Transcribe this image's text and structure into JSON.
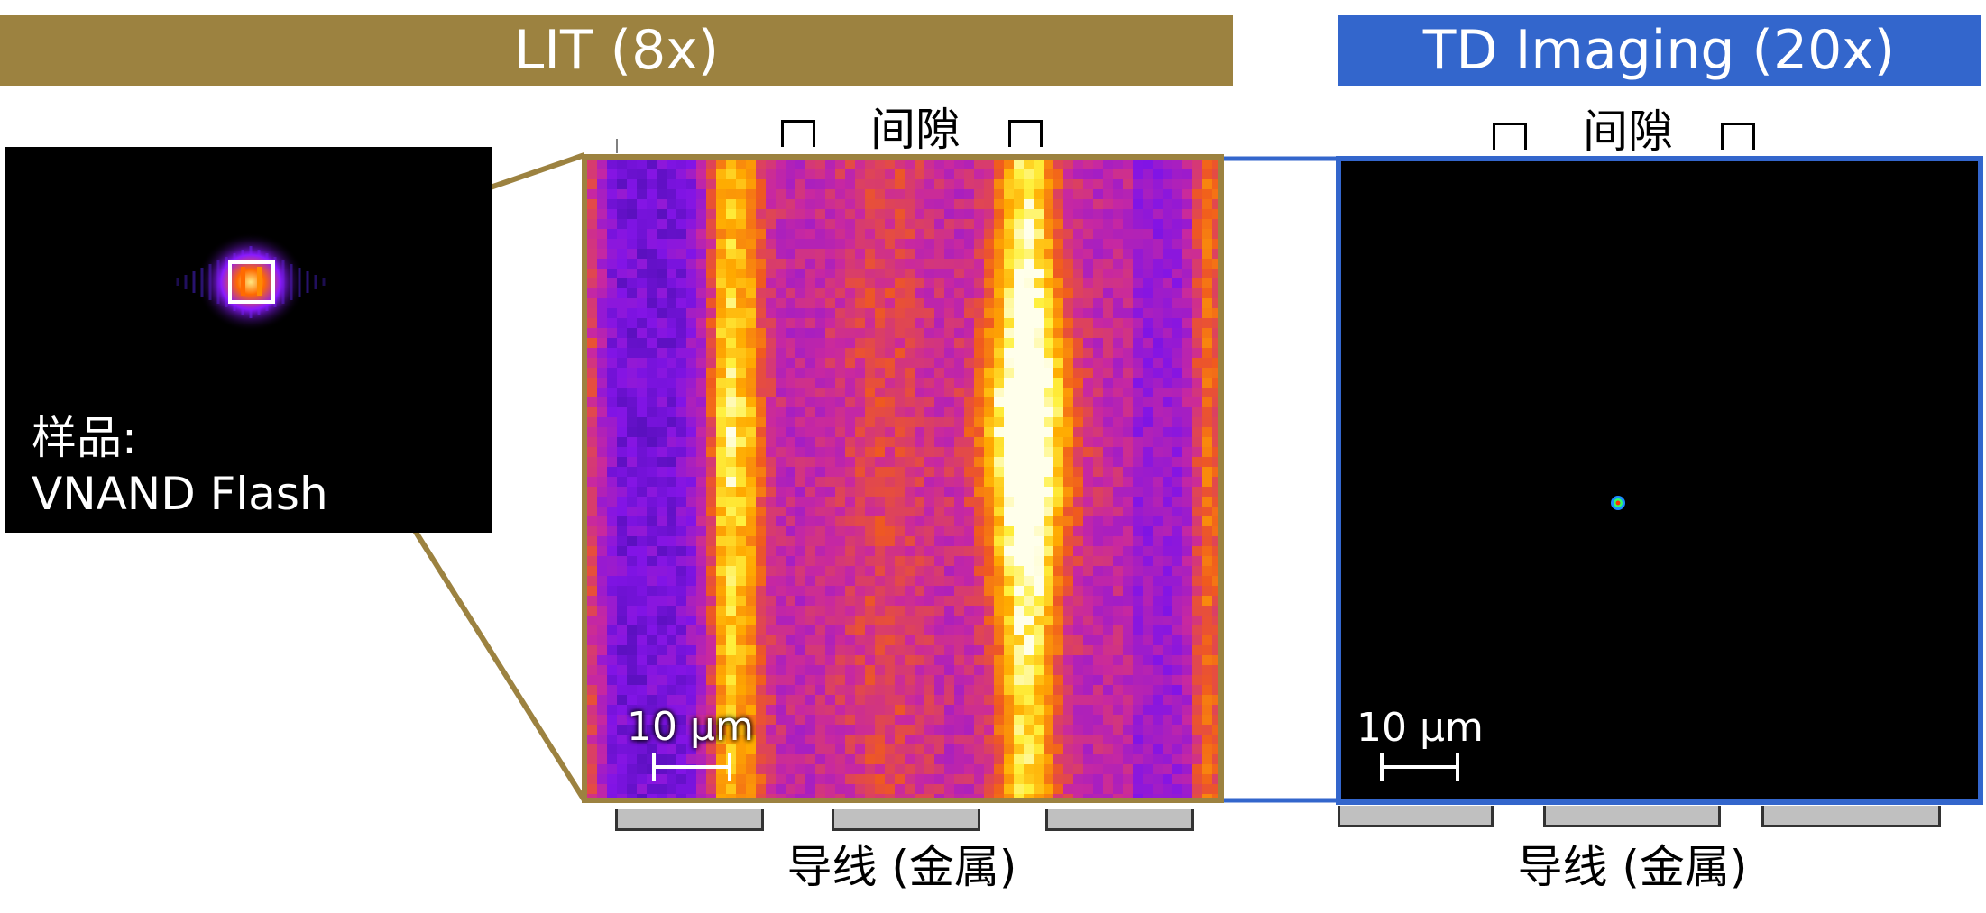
{
  "banners": {
    "lit": "LIT (8x)",
    "td": "TD Imaging (20x)"
  },
  "colors": {
    "lit_banner": "#9c8240",
    "td_banner": "#3366cc",
    "lit_frame": "#9c8240",
    "td_frame": "#3366cc"
  },
  "sample": {
    "line1": "样品:",
    "line2": "VNAND Flash"
  },
  "lit_panel": {
    "gap_label": "间隙",
    "wire_label": "导线 (金属)",
    "scale_label": "10 µm"
  },
  "td_panel": {
    "gap_label": "间隙",
    "wire_label": "导线 (金属)",
    "scale_label": "10 µm"
  }
}
